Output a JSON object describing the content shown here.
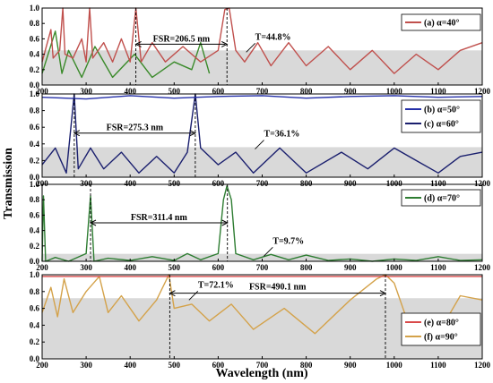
{
  "chart_data": {
    "type": "line",
    "ylabel": "Transmission",
    "xlabel": "Wavelength (nm)",
    "shared_x_ticks": [
      200,
      300,
      400,
      500,
      600,
      700,
      800,
      900,
      1000,
      1100,
      1200
    ],
    "panels": [
      {
        "xlim": [
          200,
          1200
        ],
        "ylim": [
          0,
          1.0
        ],
        "yticks": [
          "0.0",
          "0.2",
          "0.4",
          "0.6",
          "0.8",
          "1.0"
        ],
        "shaded_below": 0.45,
        "colors": {
          "main": "#c0504d",
          "secondary": "#3a8a2a"
        },
        "series": [
          {
            "name": "(a) α=40°",
            "color": "#c0504d",
            "points": [
              [
                200,
                0.3
              ],
              [
                220,
                0.72
              ],
              [
                225,
                0.35
              ],
              [
                240,
                0.45
              ],
              [
                247,
                1.0
              ],
              [
                252,
                0.4
              ],
              [
                270,
                0.35
              ],
              [
                290,
                0.6
              ],
              [
                300,
                0.3
              ],
              [
                308,
                1.0
              ],
              [
                315,
                0.35
              ],
              [
                340,
                0.55
              ],
              [
                360,
                0.3
              ],
              [
                380,
                0.6
              ],
              [
                400,
                0.3
              ],
              [
                413,
                1.0
              ],
              [
                425,
                0.3
              ],
              [
                450,
                0.55
              ],
              [
                480,
                0.3
              ],
              [
                520,
                0.5
              ],
              [
                560,
                0.3
              ],
              [
                600,
                0.45
              ],
              [
                615,
                0.98
              ],
              [
                625,
                1.0
              ],
              [
                640,
                0.45
              ],
              [
                660,
                0.3
              ],
              [
                690,
                0.55
              ],
              [
                720,
                0.25
              ],
              [
                760,
                0.55
              ],
              [
                800,
                0.25
              ],
              [
                850,
                0.5
              ],
              [
                900,
                0.2
              ],
              [
                950,
                0.45
              ],
              [
                1000,
                0.15
              ],
              [
                1050,
                0.4
              ],
              [
                1100,
                0.2
              ],
              [
                1150,
                0.45
              ],
              [
                1200,
                0.55
              ]
            ]
          },
          {
            "name": "",
            "color": "#3a8a2a",
            "points": [
              [
                200,
                0.15
              ],
              [
                230,
                0.7
              ],
              [
                245,
                0.15
              ],
              [
                260,
                0.45
              ],
              [
                290,
                0.1
              ],
              [
                320,
                0.5
              ],
              [
                360,
                0.1
              ],
              [
                410,
                0.4
              ],
              [
                450,
                0.1
              ],
              [
                500,
                0.3
              ],
              [
                540,
                0.2
              ],
              [
                560,
                0.55
              ],
              [
                580,
                0.15
              ]
            ]
          }
        ],
        "annotations": [
          {
            "text": "FSR=206.5 nm",
            "x1": 413,
            "x2": 620
          },
          {
            "text": "T=44.8%",
            "x": 680,
            "y": 0.45
          }
        ]
      },
      {
        "xlim": [
          200,
          1200
        ],
        "ylim": [
          0,
          1.0
        ],
        "yticks": [
          "0.0",
          "0.2",
          "0.4",
          "0.6",
          "0.8",
          "1.0"
        ],
        "shaded_below": 0.361,
        "colors": {
          "b": "#2530a8",
          "c": "#1a1f6e"
        },
        "series": [
          {
            "name": "(b) α=50°",
            "color": "#2530a8",
            "points": [
              [
                200,
                0.96
              ],
              [
                300,
                0.94
              ],
              [
                400,
                0.98
              ],
              [
                500,
                0.95
              ],
              [
                600,
                0.97
              ],
              [
                700,
                0.98
              ],
              [
                800,
                0.95
              ],
              [
                900,
                0.97
              ],
              [
                1000,
                0.98
              ],
              [
                1100,
                0.96
              ],
              [
                1200,
                0.97
              ]
            ]
          },
          {
            "name": "(c) α=60°",
            "color": "#1a1f6e",
            "points": [
              [
                200,
                0.15
              ],
              [
                230,
                0.35
              ],
              [
                255,
                0.05
              ],
              [
                273,
                1.0
              ],
              [
                282,
                0.1
              ],
              [
                310,
                0.35
              ],
              [
                340,
                0.1
              ],
              [
                380,
                0.3
              ],
              [
                420,
                0.05
              ],
              [
                460,
                0.25
              ],
              [
                500,
                0.05
              ],
              [
                530,
                0.3
              ],
              [
                548,
                1.0
              ],
              [
                560,
                0.35
              ],
              [
                600,
                0.15
              ],
              [
                640,
                0.3
              ],
              [
                680,
                0.05
              ],
              [
                740,
                0.35
              ],
              [
                800,
                0.05
              ],
              [
                880,
                0.3
              ],
              [
                940,
                0.1
              ],
              [
                1000,
                0.35
              ],
              [
                1050,
                0.2
              ],
              [
                1100,
                0.05
              ],
              [
                1150,
                0.25
              ],
              [
                1200,
                0.3
              ]
            ]
          }
        ],
        "annotations": [
          {
            "text": "FSR=275.3 nm",
            "x1": 273,
            "x2": 548
          },
          {
            "text": "T=36.1%",
            "x": 700,
            "y": 0.36
          }
        ]
      },
      {
        "xlim": [
          200,
          1200
        ],
        "ylim": [
          0,
          1.0
        ],
        "yticks": [
          "0.0",
          "0.2",
          "0.4",
          "0.6",
          "0.8",
          "1.0"
        ],
        "shaded_below": 0.097,
        "colors": {
          "main": "#2e7d32"
        },
        "series": [
          {
            "name": "(d) α=70°",
            "color": "#2e7d32",
            "points": [
              [
                200,
                0.0
              ],
              [
                203,
                0.85
              ],
              [
                208,
                0.0
              ],
              [
                230,
                0.05
              ],
              [
                260,
                0.0
              ],
              [
                300,
                0.1
              ],
              [
                310,
                0.85
              ],
              [
                318,
                0.0
              ],
              [
                350,
                0.04
              ],
              [
                400,
                0.01
              ],
              [
                450,
                0.06
              ],
              [
                500,
                0.01
              ],
              [
                530,
                0.1
              ],
              [
                560,
                0.02
              ],
              [
                600,
                0.1
              ],
              [
                612,
                0.8
              ],
              [
                620,
                0.98
              ],
              [
                630,
                0.8
              ],
              [
                640,
                0.1
              ],
              [
                680,
                0.02
              ],
              [
                720,
                0.09
              ],
              [
                760,
                0.02
              ],
              [
                800,
                0.08
              ],
              [
                850,
                0.01
              ],
              [
                900,
                0.03
              ],
              [
                950,
                0.0
              ],
              [
                1000,
                0.03
              ],
              [
                1050,
                0.01
              ],
              [
                1100,
                0.06
              ],
              [
                1150,
                0.01
              ],
              [
                1200,
                0.02
              ]
            ]
          }
        ],
        "annotations": [
          {
            "text": "FSR=311.4 nm",
            "x1": 310,
            "x2": 621
          },
          {
            "text": "T=9.7%",
            "x": 720,
            "y": 0.09
          }
        ]
      },
      {
        "xlim": [
          200,
          1200
        ],
        "ylim": [
          0,
          1.0
        ],
        "yticks": [
          "0.0",
          "0.2",
          "0.4",
          "0.6",
          "0.8",
          "1.0"
        ],
        "shaded_below": 0.721,
        "colors": {
          "e": "#d94a4a",
          "f": "#d4a24a"
        },
        "series": [
          {
            "name": "(e) α=80°",
            "color": "#d94a4a",
            "points": [
              [
                200,
                0.98
              ],
              [
                400,
                0.98
              ],
              [
                600,
                0.98
              ],
              [
                800,
                0.98
              ],
              [
                1000,
                0.98
              ],
              [
                1200,
                0.98
              ]
            ]
          },
          {
            "name": "(f) α=90°",
            "color": "#d4a24a",
            "points": [
              [
                200,
                0.55
              ],
              [
                220,
                0.85
              ],
              [
                235,
                0.5
              ],
              [
                250,
                0.95
              ],
              [
                270,
                0.55
              ],
              [
                300,
                0.8
              ],
              [
                330,
                0.98
              ],
              [
                350,
                0.55
              ],
              [
                380,
                0.75
              ],
              [
                420,
                0.45
              ],
              [
                460,
                0.7
              ],
              [
                488,
                1.0
              ],
              [
                500,
                0.6
              ],
              [
                540,
                0.65
              ],
              [
                580,
                0.45
              ],
              [
                630,
                0.65
              ],
              [
                680,
                0.35
              ],
              [
                750,
                0.6
              ],
              [
                820,
                0.3
              ],
              [
                900,
                0.7
              ],
              [
                960,
                0.95
              ],
              [
                980,
                1.0
              ],
              [
                1000,
                0.9
              ],
              [
                1040,
                0.3
              ],
              [
                1100,
                0.3
              ],
              [
                1150,
                0.75
              ],
              [
                1200,
                0.7
              ]
            ]
          }
        ],
        "annotations": [
          {
            "text": "T=72.1%",
            "x": 550,
            "y": 0.72
          },
          {
            "text": "FSR=490.1 nm",
            "x1": 490,
            "x2": 980
          }
        ]
      }
    ]
  }
}
